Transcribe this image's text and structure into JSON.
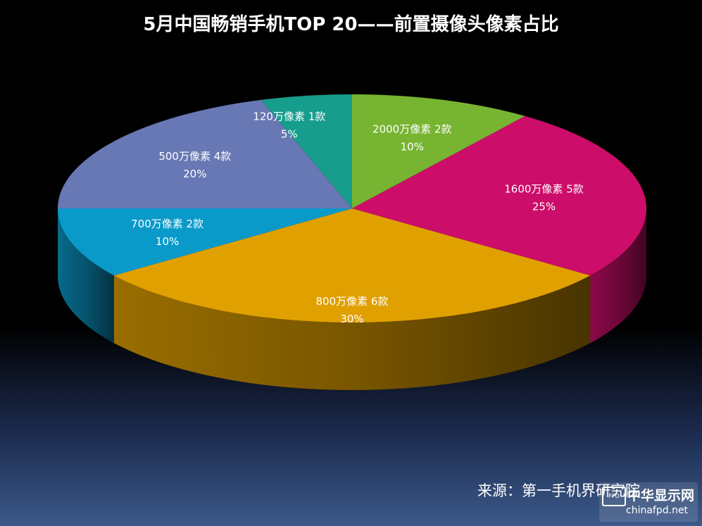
{
  "title": "5月中国畅销手机TOP 20——前置摄像头像素占比",
  "source": "来源：第一手机界研究院",
  "watermark": {
    "cn": "中华显示网",
    "en": "chinafpd.net",
    "icon_text": "FPD"
  },
  "chart_data": {
    "type": "pie",
    "title": "5月中国畅销手机TOP 20——前置摄像头像素占比",
    "slices": [
      {
        "label": "2000万像素 2款",
        "pct_label": "10%",
        "value": 10,
        "color": "#77b431"
      },
      {
        "label": "1600万像素 5款",
        "pct_label": "25%",
        "value": 25,
        "color": "#cc0d69"
      },
      {
        "label": "800万像素 6款",
        "pct_label": "30%",
        "value": 30,
        "color": "#e0a000"
      },
      {
        "label": "700万像素 2款",
        "pct_label": "10%",
        "value": 10,
        "color": "#0a9ac9"
      },
      {
        "label": "500万像素 4款",
        "pct_label": "20%",
        "value": 20,
        "color": "#6878b4"
      },
      {
        "label": "120万像素 1款",
        "pct_label": "5%",
        "value": 5,
        "color": "#179d8b"
      }
    ]
  }
}
